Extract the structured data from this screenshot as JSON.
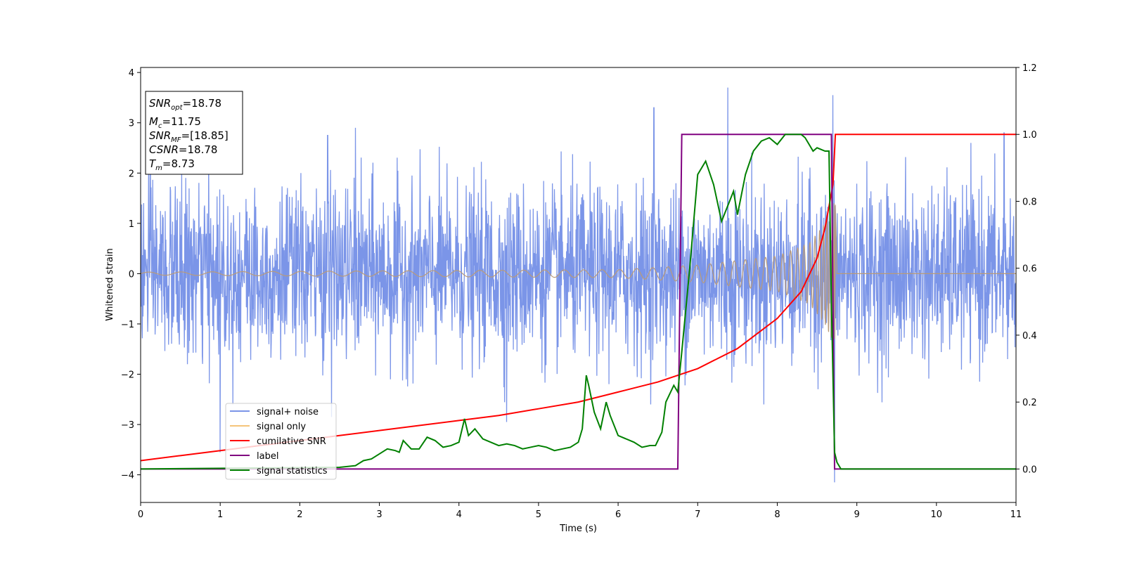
{
  "chart_data": {
    "type": "line",
    "xlabel": "Time (s)",
    "ylabel_left": "Whitened strain",
    "ylabel_right": "",
    "xlim": [
      0,
      11
    ],
    "ylim_left": [
      -4.55,
      4.1
    ],
    "ylim_right": [
      -0.1,
      1.2
    ],
    "x_ticks": [
      0,
      1,
      2,
      3,
      4,
      5,
      6,
      7,
      8,
      9,
      10,
      11
    ],
    "y_ticks_left": [
      -4,
      -3,
      -2,
      -1,
      0,
      1,
      2,
      3,
      4
    ],
    "y_ticks_right": [
      0.0,
      0.2,
      0.4,
      0.6,
      0.8,
      1.0,
      1.2
    ],
    "y_tick_labels_right": [
      "0.0",
      "0.2",
      "0.4",
      "0.6",
      "0.8",
      "1.0",
      "1.2"
    ],
    "grid": false,
    "legend_position": "lower-left",
    "annotation_box": {
      "position": "upper-left",
      "lines": [
        {
          "base": "SNR",
          "sub": "opt",
          "rest": "=18.78"
        },
        {
          "base": "M",
          "sub": "c",
          "rest": "=11.75"
        },
        {
          "base": "SNR",
          "sub": "MF",
          "rest": "=[18.85]"
        },
        {
          "base": "CSNR",
          "sub": "",
          "rest": "=18.78"
        },
        {
          "base": "T",
          "sub": "m",
          "rest": "=8.73"
        }
      ]
    },
    "colors": {
      "noise": "#7b95e8",
      "signal": "#f5c47a",
      "signal_overlap": "#b99b7a",
      "csnr": "#ff0000",
      "label": "#800080",
      "stats": "#008000"
    },
    "series": [
      {
        "name": "signal+ noise",
        "axis": "left",
        "generated": "gaussian_noise",
        "x_range": [
          0,
          11
        ],
        "sigma": 0.85,
        "spike_peaks": [
          [
            0.1,
            2.5
          ],
          [
            1.0,
            -3.55
          ],
          [
            2.35,
            2.75
          ],
          [
            2.4,
            -2.85
          ],
          [
            2.7,
            2.9
          ],
          [
            4.6,
            -2.95
          ],
          [
            6.45,
            3.3
          ],
          [
            7.38,
            3.7
          ],
          [
            8.7,
            3.55
          ],
          [
            8.72,
            -4.15
          ],
          [
            10.85,
            2.8
          ]
        ]
      },
      {
        "name": "signal only",
        "axis": "left",
        "generated": "chirp",
        "x_range": [
          0,
          8.73
        ],
        "amplitude_points": [
          [
            0,
            0.03
          ],
          [
            6.0,
            0.08
          ],
          [
            7.0,
            0.17
          ],
          [
            8.0,
            0.35
          ],
          [
            8.4,
            0.6
          ],
          [
            8.6,
            1.0
          ],
          [
            8.7,
            1.4
          ]
        ],
        "after_merger_value": 0
      },
      {
        "name": "cumilative SNR",
        "axis": "right",
        "x": [
          0,
          0.5,
          1,
          1.5,
          2,
          2.5,
          3,
          3.5,
          4,
          4.5,
          5,
          5.5,
          6,
          6.5,
          7,
          7.5,
          8,
          8.3,
          8.5,
          8.6,
          8.7,
          8.73,
          11
        ],
        "y": [
          0.025,
          0.04,
          0.055,
          0.07,
          0.085,
          0.1,
          0.115,
          0.13,
          0.145,
          0.16,
          0.18,
          0.2,
          0.23,
          0.26,
          0.3,
          0.36,
          0.45,
          0.53,
          0.63,
          0.72,
          0.85,
          1.0,
          1.0
        ]
      },
      {
        "name": "label",
        "axis": "right",
        "x": [
          0,
          6.75,
          6.8,
          8.68,
          8.72,
          11
        ],
        "y": [
          0,
          0,
          1.0,
          1.0,
          0,
          0
        ]
      },
      {
        "name": "signal statistics",
        "axis": "right",
        "x": [
          0,
          2.5,
          2.7,
          2.8,
          2.9,
          3.0,
          3.1,
          3.2,
          3.25,
          3.3,
          3.4,
          3.5,
          3.6,
          3.7,
          3.8,
          3.9,
          4.0,
          4.07,
          4.12,
          4.2,
          4.3,
          4.4,
          4.5,
          4.6,
          4.7,
          4.8,
          4.9,
          5.0,
          5.1,
          5.2,
          5.3,
          5.4,
          5.5,
          5.55,
          5.6,
          5.63,
          5.7,
          5.78,
          5.85,
          5.9,
          6.0,
          6.2,
          6.3,
          6.4,
          6.47,
          6.55,
          6.6,
          6.7,
          6.75,
          6.8,
          6.9,
          7.0,
          7.05,
          7.1,
          7.2,
          7.3,
          7.4,
          7.45,
          7.5,
          7.6,
          7.7,
          7.8,
          7.9,
          8.0,
          8.1,
          8.2,
          8.3,
          8.35,
          8.4,
          8.45,
          8.5,
          8.6,
          8.65,
          8.68,
          8.72,
          8.75,
          8.8,
          11
        ],
        "y": [
          0.0,
          0.005,
          0.01,
          0.025,
          0.03,
          0.045,
          0.06,
          0.055,
          0.05,
          0.085,
          0.06,
          0.06,
          0.095,
          0.085,
          0.065,
          0.07,
          0.08,
          0.15,
          0.1,
          0.12,
          0.09,
          0.08,
          0.07,
          0.075,
          0.07,
          0.06,
          0.065,
          0.07,
          0.065,
          0.055,
          0.06,
          0.065,
          0.08,
          0.12,
          0.28,
          0.25,
          0.17,
          0.12,
          0.2,
          0.16,
          0.1,
          0.08,
          0.065,
          0.07,
          0.07,
          0.11,
          0.2,
          0.25,
          0.23,
          0.35,
          0.6,
          0.88,
          0.9,
          0.92,
          0.85,
          0.74,
          0.8,
          0.83,
          0.76,
          0.88,
          0.95,
          0.98,
          0.99,
          0.97,
          1.0,
          1.0,
          1.0,
          0.99,
          0.97,
          0.95,
          0.96,
          0.95,
          0.95,
          0.5,
          0.05,
          0.02,
          0.0,
          0.0
        ]
      }
    ]
  }
}
